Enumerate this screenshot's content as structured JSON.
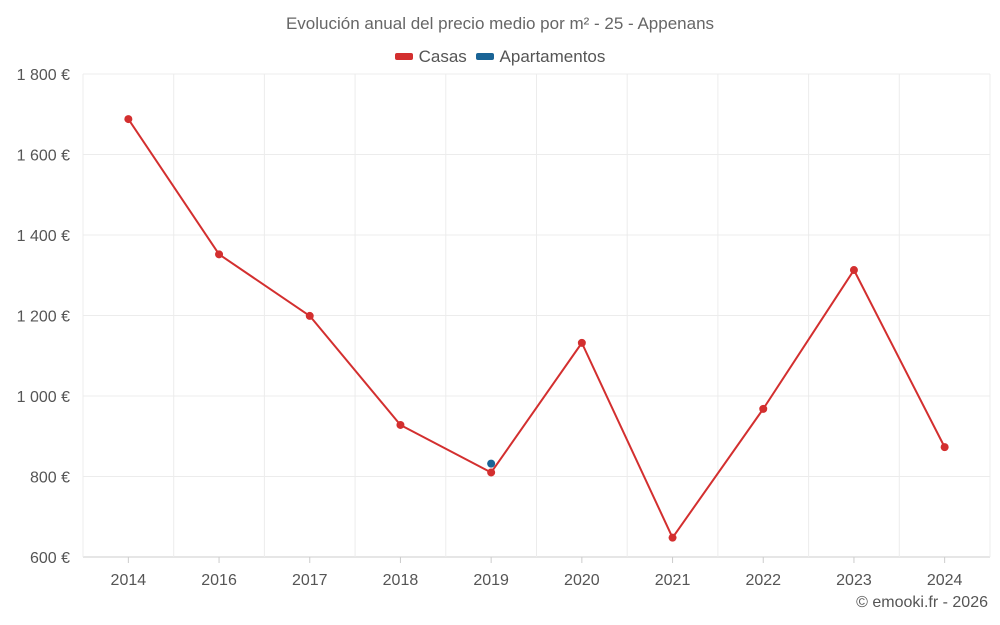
{
  "chart_data": {
    "type": "line",
    "title": "Evolución anual del precio medio por m² - 25 - Appenans",
    "categories": [
      "2014",
      "2016",
      "2017",
      "2018",
      "2019",
      "2020",
      "2021",
      "2022",
      "2023",
      "2024"
    ],
    "series": [
      {
        "name": "Casas",
        "color": "#d32f2f",
        "values": [
          1688,
          1352,
          1199,
          928,
          810,
          1132,
          648,
          968,
          1313,
          873
        ]
      },
      {
        "name": "Apartamentos",
        "color": "#1a6496",
        "values": [
          null,
          null,
          null,
          null,
          832,
          null,
          null,
          null,
          null,
          null
        ]
      }
    ],
    "ylim": [
      600,
      1800
    ],
    "yticks": [
      600,
      800,
      1000,
      1200,
      1400,
      1600,
      1800
    ],
    "ytick_labels": [
      "600 €",
      "800 €",
      "1 000 €",
      "1 200 €",
      "1 400 €",
      "1 600 €",
      "1 800 €"
    ],
    "xlabel": "",
    "ylabel": "",
    "grid": true,
    "legend": "top-center"
  },
  "footer": "© emooki.fr - 2026"
}
